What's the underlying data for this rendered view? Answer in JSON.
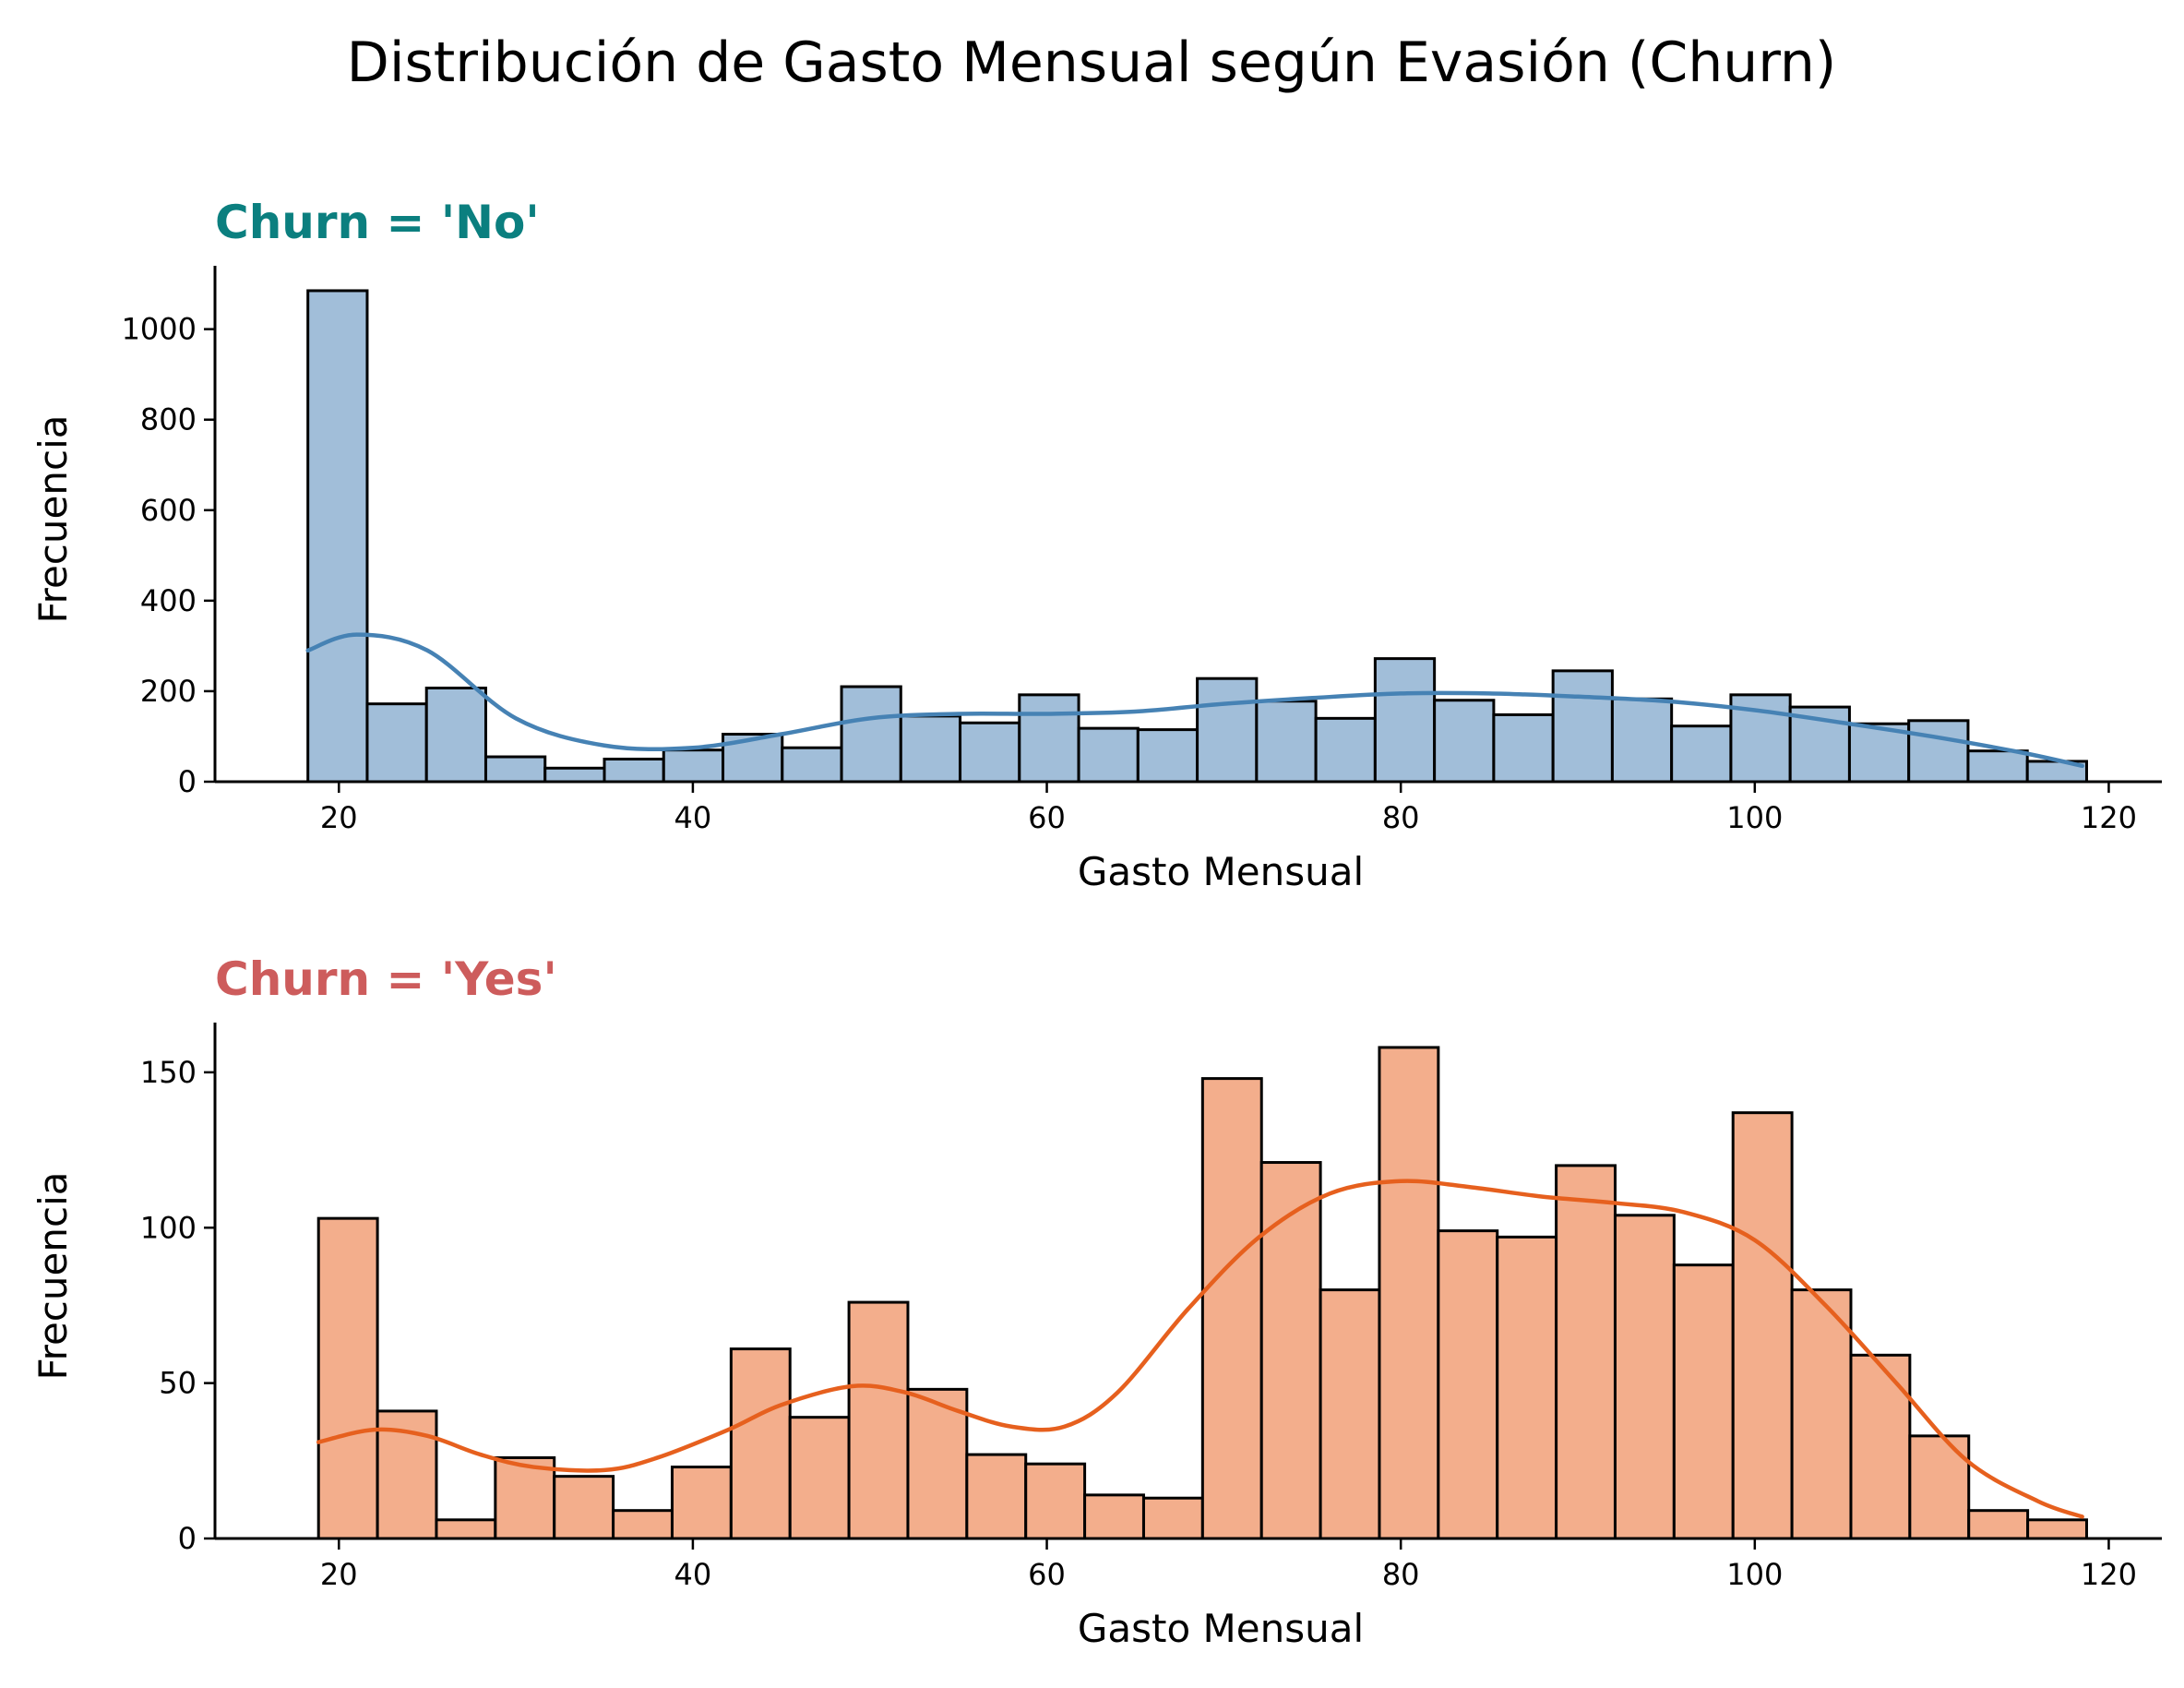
{
  "figure": {
    "suptitle": "Distribución de Gasto Mensual según Evasión (Churn)"
  },
  "chart_data": [
    {
      "type": "bar",
      "subtype": "histogram-with-kde",
      "title": "Churn = 'No'",
      "title_color": "#0b7f7f",
      "xlabel": "Gasto Mensual",
      "ylabel": "Frecuencia",
      "xlim": [
        13,
        123
      ],
      "ylim": [
        0,
        1140
      ],
      "xticks": [
        20,
        40,
        60,
        80,
        100,
        120
      ],
      "yticks": [
        0,
        200,
        400,
        600,
        800,
        1000
      ],
      "grid": false,
      "bar_color": "#a1bed9",
      "edge_color": "#000000",
      "kde_color": "#4682b4",
      "bin_edges": [
        18.25,
        21.6,
        24.95,
        28.3,
        31.65,
        35.0,
        38.35,
        41.7,
        45.05,
        48.4,
        51.75,
        55.1,
        58.45,
        61.8,
        65.15,
        68.5,
        71.85,
        75.2,
        78.55,
        81.9,
        85.25,
        88.6,
        91.95,
        95.3,
        98.65,
        102.0,
        105.35,
        108.7,
        112.05,
        115.4,
        118.75
      ],
      "values": [
        1085,
        172,
        207,
        55,
        30,
        50,
        70,
        105,
        75,
        210,
        145,
        130,
        192,
        118,
        115,
        228,
        178,
        140,
        272,
        180,
        148,
        245,
        183,
        123,
        192,
        165,
        128,
        135,
        68,
        45
      ],
      "kde": {
        "x": [
          18.25,
          21,
          25,
          30,
          35,
          40,
          45,
          50,
          55,
          60,
          65,
          70,
          75,
          80,
          85,
          90,
          95,
          100,
          105,
          110,
          115,
          118.5
        ],
        "y": [
          290,
          325,
          290,
          140,
          80,
          75,
          105,
          140,
          150,
          150,
          155,
          172,
          185,
          195,
          195,
          188,
          178,
          158,
          130,
          100,
          65,
          35
        ]
      }
    },
    {
      "type": "bar",
      "subtype": "histogram-with-kde",
      "title": "Churn = 'Yes'",
      "title_color": "#cd5c5c",
      "xlabel": "Gasto Mensual",
      "ylabel": "Frecuencia",
      "xlim": [
        13,
        123
      ],
      "ylim": [
        0,
        166
      ],
      "xticks": [
        20,
        40,
        60,
        80,
        100,
        120
      ],
      "yticks": [
        0,
        50,
        100,
        150
      ],
      "grid": false,
      "bar_color": "#f3ae8c",
      "edge_color": "#000000",
      "kde_color": "#e6601e",
      "bin_edges": [
        18.85,
        22.18,
        25.51,
        28.84,
        32.17,
        35.5,
        38.83,
        42.16,
        45.49,
        48.82,
        52.15,
        55.48,
        58.81,
        62.14,
        65.47,
        68.8,
        72.13,
        75.46,
        78.79,
        82.12,
        85.45,
        88.78,
        92.11,
        95.44,
        98.77,
        102.1,
        105.43,
        108.76,
        112.09,
        115.42,
        118.75
      ],
      "values": [
        103,
        41,
        6,
        26,
        20,
        9,
        23,
        61,
        39,
        76,
        48,
        27,
        24,
        14,
        13,
        148,
        121,
        80,
        158,
        99,
        97,
        120,
        104,
        88,
        137,
        80,
        59,
        33,
        9,
        6
      ],
      "kde": {
        "x": [
          18.85,
          22,
          25,
          28,
          31,
          35,
          38,
          42,
          45,
          49,
          52,
          55,
          58,
          61,
          64,
          68,
          72,
          76,
          80,
          84,
          88,
          92,
          96,
          100,
          104,
          108,
          112,
          116,
          118.5
        ],
        "y": [
          31,
          35,
          33,
          27,
          23,
          22,
          26,
          35,
          43,
          49,
          47,
          41,
          36,
          36,
          47,
          74,
          97,
          111,
          115,
          113,
          110,
          108,
          105,
          96,
          75,
          50,
          25,
          12,
          7
        ]
      }
    }
  ]
}
